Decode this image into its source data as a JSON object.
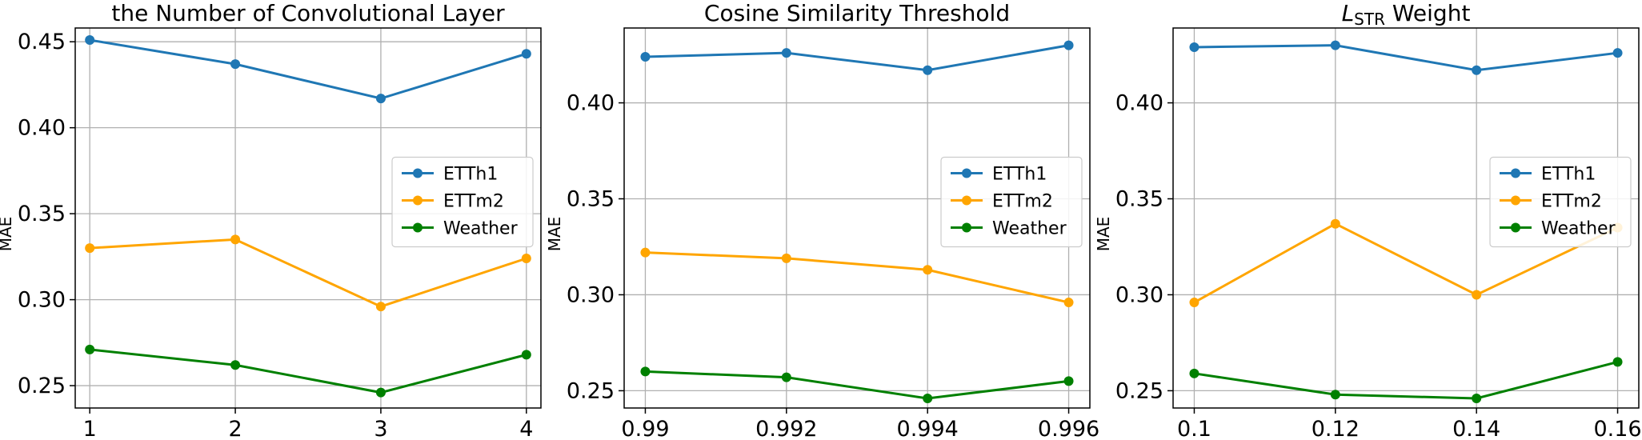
{
  "chart_data": [
    {
      "type": "line",
      "title": "the Number of Convolutional Layer",
      "xlabel": "",
      "ylabel": "MAE",
      "x": [
        1,
        2,
        3,
        4
      ],
      "x_tick_labels": [
        "1",
        "2",
        "3",
        "4"
      ],
      "xlim": [
        0.9,
        4.1
      ],
      "ylim": [
        0.237,
        0.458
      ],
      "y_ticks": [
        0.25,
        0.3,
        0.35,
        0.4,
        0.45
      ],
      "y_tick_labels": [
        "0.25",
        "0.30",
        "0.35",
        "0.40",
        "0.45"
      ],
      "grid": true,
      "legend_position": "center-right",
      "series": [
        {
          "name": "ETTh1",
          "color": "#1f77b4",
          "values": [
            0.451,
            0.437,
            0.417,
            0.443
          ]
        },
        {
          "name": "ETTm2",
          "color": "#ffa500",
          "values": [
            0.33,
            0.335,
            0.296,
            0.324
          ]
        },
        {
          "name": "Weather",
          "color": "#008000",
          "values": [
            0.271,
            0.262,
            0.246,
            0.268
          ]
        }
      ]
    },
    {
      "type": "line",
      "title": "Cosine Similarity Threshold",
      "xlabel": "",
      "ylabel": "MAE",
      "x": [
        0.99,
        0.992,
        0.994,
        0.996
      ],
      "x_tick_labels": [
        "0.99",
        "0.992",
        "0.994",
        "0.996"
      ],
      "xlim": [
        0.9897,
        0.9963
      ],
      "ylim": [
        0.241,
        0.439
      ],
      "y_ticks": [
        0.25,
        0.3,
        0.35,
        0.4
      ],
      "y_tick_labels": [
        "0.25",
        "0.30",
        "0.35",
        "0.40"
      ],
      "grid": true,
      "legend_position": "center-right",
      "series": [
        {
          "name": "ETTh1",
          "color": "#1f77b4",
          "values": [
            0.424,
            0.426,
            0.417,
            0.43
          ]
        },
        {
          "name": "ETTm2",
          "color": "#ffa500",
          "values": [
            0.322,
            0.319,
            0.313,
            0.296
          ]
        },
        {
          "name": "Weather",
          "color": "#008000",
          "values": [
            0.26,
            0.257,
            0.246,
            0.255
          ]
        }
      ]
    },
    {
      "type": "line",
      "title_main": "L",
      "title_sub": "STR",
      "title_rest": " Weight",
      "xlabel": "",
      "ylabel": "MAE",
      "x": [
        0.1,
        0.12,
        0.14,
        0.16
      ],
      "x_tick_labels": [
        "0.1",
        "0.12",
        "0.14",
        "0.16"
      ],
      "xlim": [
        0.097,
        0.163
      ],
      "ylim": [
        0.241,
        0.439
      ],
      "y_ticks": [
        0.25,
        0.3,
        0.35,
        0.4
      ],
      "y_tick_labels": [
        "0.25",
        "0.30",
        "0.35",
        "0.40"
      ],
      "grid": true,
      "legend_position": "center-right",
      "series": [
        {
          "name": "ETTh1",
          "color": "#1f77b4",
          "values": [
            0.429,
            0.43,
            0.417,
            0.426
          ]
        },
        {
          "name": "ETTm2",
          "color": "#ffa500",
          "values": [
            0.296,
            0.337,
            0.3,
            0.335
          ]
        },
        {
          "name": "Weather",
          "color": "#008000",
          "values": [
            0.259,
            0.248,
            0.246,
            0.265
          ]
        }
      ]
    }
  ]
}
